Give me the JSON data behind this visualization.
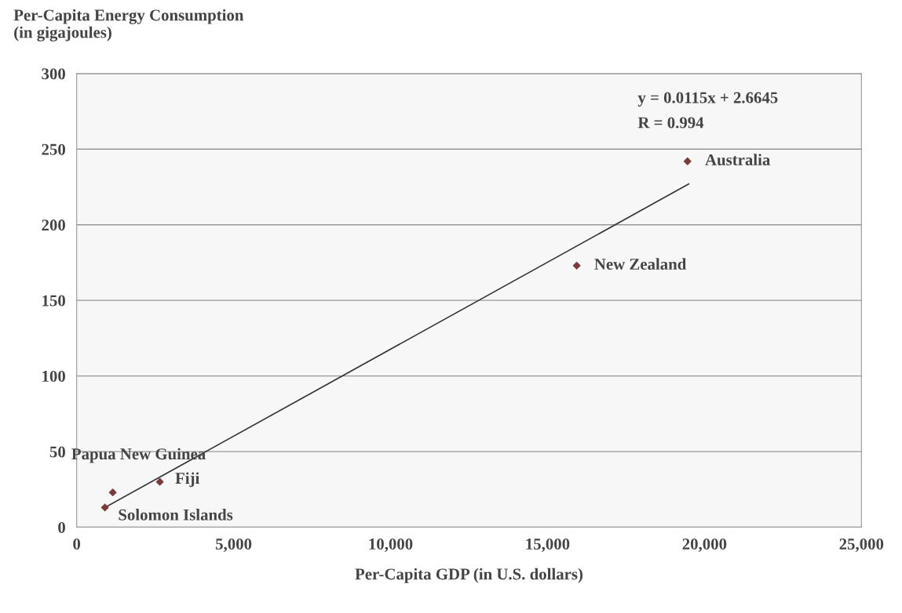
{
  "chart_data": {
    "type": "scatter",
    "ylabel": "Per-Capita Energy Consumption\n(in gigajoules)",
    "xlabel": "Per-Capita GDP (in U.S. dollars)",
    "series": [
      {
        "color": "#7a3b3b",
        "marker": "diamond",
        "x": [
          19460,
          15930,
          2650,
          1150,
          900
        ],
        "values": [
          242,
          173,
          30,
          23,
          13
        ]
      },
      {
        "type": "line",
        "color": "#333333",
        "x": [
          900,
          19500
        ],
        "values": [
          13,
          227
        ]
      }
    ],
    "xlim": [
      0,
      25000
    ],
    "ylim": [
      0,
      300
    ],
    "xticks": [
      0,
      {
        "value": 5000,
        "label": "5,000"
      },
      {
        "value": 10000,
        "label": "10,000"
      },
      {
        "value": 15000,
        "label": "15,000"
      },
      {
        "value": 20000,
        "label": "20,000"
      },
      {
        "value": 25000,
        "label": "25,000"
      }
    ],
    "yticks": [
      0,
      50,
      100,
      150,
      200,
      250,
      300
    ],
    "grid": "y",
    "annotations": [
      {
        "text": "Australia",
        "x": 19460,
        "y": 242
      },
      {
        "text": "New Zealand",
        "x": 15930,
        "y": 173
      },
      {
        "text": "Fiji",
        "x": 2650,
        "y": 30
      },
      {
        "text": "Papua New Guinea",
        "x": 1150,
        "y": 23
      },
      {
        "text": "Solomon Islands",
        "x": 900,
        "y": 13
      },
      "y = 0.0115x + 2.6645",
      "R = 0.994"
    ]
  }
}
